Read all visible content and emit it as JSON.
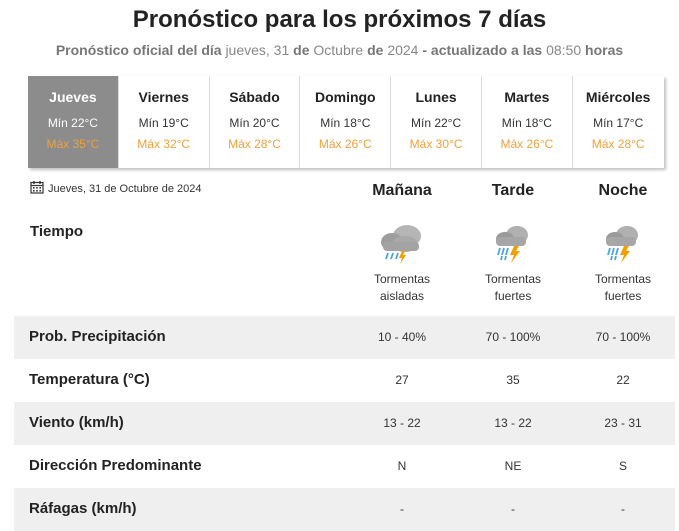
{
  "header": {
    "title": "Pronóstico para los próximos 7 días",
    "sub_a": "Pronóstico oficial del día",
    "sub_b": "jueves, 31",
    "sub_c": "de",
    "sub_d": "Octubre",
    "sub_e": "de",
    "sub_f": "2024",
    "sub_g": "- actualizado a las",
    "sub_h": "08:50",
    "sub_i": "horas"
  },
  "days": [
    {
      "name": "Jueves",
      "min": "Mín 22°C",
      "max": "Máx 35°C",
      "active": true
    },
    {
      "name": "Viernes",
      "min": "Mín 19°C",
      "max": "Máx 32°C"
    },
    {
      "name": "Sábado",
      "min": "Mín 20°C",
      "max": "Máx 28°C"
    },
    {
      "name": "Domingo",
      "min": "Mín 18°C",
      "max": "Máx 26°C"
    },
    {
      "name": "Lunes",
      "min": "Mín 22°C",
      "max": "Máx 30°C"
    },
    {
      "name": "Martes",
      "min": "Mín 18°C",
      "max": "Máx 26°C"
    },
    {
      "name": "Miércoles",
      "min": "Mín 17°C",
      "max": "Máx 28°C"
    }
  ],
  "detail": {
    "date": "Jueves, 31 de Octubre de 2024",
    "date_icon": "calendar-icon",
    "columns": [
      "Mañana",
      "Tarde",
      "Noche"
    ],
    "tiempo_label": "Tiempo",
    "weather": [
      {
        "icon": "isolated-storm-cloud-icon",
        "line1": "Tormentas",
        "line2": "aisladas"
      },
      {
        "icon": "strong-storm-cloud-icon",
        "line1": "Tormentas",
        "line2": "fuertes"
      },
      {
        "icon": "strong-storm-cloud-icon",
        "line1": "Tormentas",
        "line2": "fuertes"
      }
    ],
    "rows": [
      {
        "label": "Prob. Precipitación",
        "values": [
          "10 - 40%",
          "70 - 100%",
          "70 - 100%"
        ]
      },
      {
        "label": "Temperatura (°C)",
        "values": [
          "27",
          "35",
          "22"
        ]
      },
      {
        "label": "Viento (km/h)",
        "values": [
          "13 - 22",
          "13 - 22",
          "23 - 31"
        ]
      },
      {
        "label": "Dirección Predominante",
        "values": [
          "N",
          "NE",
          "S"
        ]
      },
      {
        "label": "Ráfagas (km/h)",
        "values": [
          "-",
          "-",
          "-"
        ]
      }
    ]
  },
  "colors": {
    "max_temp": "#f0a03c",
    "active_day": "#8c8c8c",
    "row_shade": "#efefef",
    "lightning": "#f0a000",
    "rain": "#4aa3df"
  }
}
